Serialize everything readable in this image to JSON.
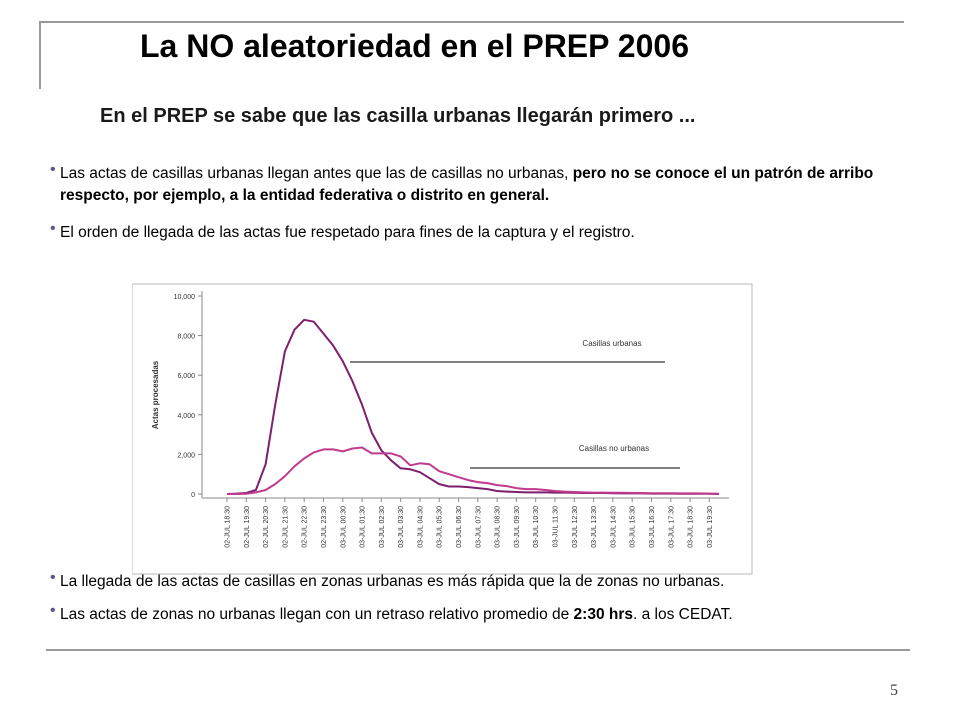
{
  "slide": {
    "title": "La NO aleatoriedad en el PREP 2006",
    "subtitle": "En el PREP se sabe que las casilla urbanas llegarán primero ...",
    "bullet1_normal": "Las actas de casillas urbanas llegan antes que las de casillas no urbanas, ",
    "bullet1_bold": "pero no se conoce el un patrón de arribo respecto, por  ejemplo, a la entidad federativa o distrito en general.",
    "bullet2": "El orden de llegada de las actas fue respetado para fines de la captura y el registro.",
    "bullet3": "La llegada de las actas de casillas en zonas urbanas es más rápida que la de zonas no urbanas.",
    "bullet4_a": "Las actas de zonas no urbanas llegan con un retraso relativo promedio de ",
    "bullet4_bold": "2:30 hrs",
    "bullet4_b": ". a los CEDAT.",
    "page_number": "5"
  },
  "chart_data": {
    "type": "line",
    "ylabel": "Actas procesadas",
    "xlabel": "",
    "ylim": [
      0,
      10000
    ],
    "yticks": [
      "0",
      "2,000",
      "4,000",
      "6,000",
      "8,000",
      "10,000"
    ],
    "ytick_values": [
      0,
      2000,
      4000,
      6000,
      8000,
      10000
    ],
    "x_tick_labels": [
      "02-JUL 18:30",
      "02-JUL 19:30",
      "02-JUL 20:30",
      "02-JUL 21:30",
      "02-JUL 22:30",
      "02-JUL 23:30",
      "03-JUL 00:30",
      "03-JUL 01:30",
      "03-JUL 02:30",
      "03-JUL 03:30",
      "03-JUL 04:30",
      "03-JUL 05:30",
      "03-JUL 06:30",
      "03-JUL 07:30",
      "03-JUL 08:30",
      "03-JUL 09:30",
      "03-JUL 10:30",
      "03-JUL 11:30",
      "03-JUL 12:30",
      "03-JUL 13:30",
      "03-JUL 14:30",
      "03-JUL 15:30",
      "03-JUL 16:30",
      "03-JUL 17:30",
      "03-JUL 18:30",
      "03-JUL 19:30"
    ],
    "x_range": [
      0,
      25.5
    ],
    "series": [
      {
        "name": "Casillas urbanas",
        "color": "#7d1f6e",
        "x": [
          0,
          0.5,
          1,
          1.5,
          2,
          2.5,
          3,
          3.5,
          4,
          4.5,
          5,
          5.5,
          6,
          6.5,
          7,
          7.5,
          8,
          8.5,
          9,
          9.5,
          10,
          10.5,
          11,
          11.5,
          12,
          12.5,
          13,
          13.5,
          14,
          14.5,
          15,
          15.5,
          16,
          16.5,
          17,
          17.5,
          18,
          18.5,
          19,
          19.5,
          20,
          20.5,
          21,
          21.5,
          22,
          22.5,
          23,
          23.5,
          24,
          24.5,
          25,
          25.5
        ],
        "values": [
          0,
          20,
          50,
          200,
          1500,
          4500,
          7200,
          8300,
          8800,
          8700,
          8100,
          7500,
          6700,
          5700,
          4500,
          3100,
          2200,
          1700,
          1300,
          1250,
          1100,
          800,
          500,
          380,
          380,
          350,
          300,
          250,
          150,
          120,
          100,
          80,
          80,
          80,
          70,
          70,
          60,
          50,
          50,
          50,
          40,
          30,
          30,
          30,
          20,
          20,
          20,
          10,
          10,
          10,
          10,
          0
        ]
      },
      {
        "name": "Casillas no urbanas",
        "color": "#c03a8e",
        "x": [
          0,
          0.5,
          1,
          1.5,
          2,
          2.5,
          3,
          3.5,
          4,
          4.5,
          5,
          5.5,
          6,
          6.5,
          7,
          7.5,
          8,
          8.5,
          9,
          9.5,
          10,
          10.5,
          11,
          11.5,
          12,
          12.5,
          13,
          13.5,
          14,
          14.5,
          15,
          15.5,
          16,
          16.5,
          17,
          17.5,
          18,
          18.5,
          19,
          19.5,
          20,
          20.5,
          21,
          21.5,
          22,
          22.5,
          23,
          23.5,
          24,
          24.5,
          25,
          25.5
        ],
        "values": [
          0,
          0,
          10,
          80,
          200,
          500,
          900,
          1400,
          1800,
          2100,
          2250,
          2250,
          2150,
          2300,
          2350,
          2050,
          2050,
          2050,
          1900,
          1450,
          1550,
          1500,
          1150,
          1000,
          850,
          700,
          600,
          550,
          450,
          400,
          300,
          250,
          250,
          200,
          150,
          120,
          100,
          80,
          70,
          70,
          60,
          60,
          50,
          50,
          40,
          40,
          40,
          30,
          30,
          30,
          20,
          10
        ]
      }
    ],
    "annotations": [
      "Casillas urbanas",
      "Casillas no urbanas"
    ],
    "grid": false,
    "legend": "inline labels"
  }
}
